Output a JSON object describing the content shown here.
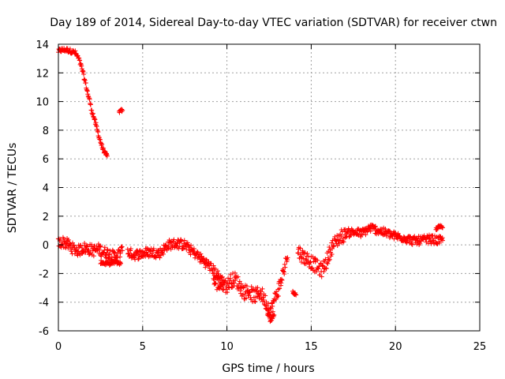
{
  "chart_data": {
    "type": "scatter",
    "title": "Day 189 of 2014, Sidereal Day-to-day VTEC variation (SDTVAR) for receiver ctwn",
    "xlabel": "GPS time / hours",
    "ylabel": "SDTVAR / TECUs",
    "xlim": [
      0,
      25
    ],
    "ylim": [
      -6,
      14
    ],
    "xticks": [
      0,
      5,
      10,
      15,
      20,
      25
    ],
    "yticks": [
      -6,
      -4,
      -2,
      0,
      2,
      4,
      6,
      8,
      10,
      12,
      14
    ],
    "grid": true,
    "marker": "+",
    "series": [
      {
        "name": "SDTVAR",
        "color": "#ff0000",
        "bands": [
          {
            "x": [
              0.0,
              0.2,
              0.5,
              0.8,
              1.0,
              1.2,
              1.4,
              1.6,
              1.8,
              2.0,
              2.2,
              2.4,
              2.6,
              2.8,
              2.9
            ],
            "y": [
              13.5,
              13.6,
              13.6,
              13.5,
              13.4,
              13.0,
              12.3,
              11.3,
              10.3,
              9.3,
              8.5,
              7.6,
              6.8,
              6.3,
              6.2
            ],
            "spread": 0.15
          },
          {
            "x": [
              3.6,
              3.8
            ],
            "y": [
              9.3,
              9.4
            ],
            "spread": 0.1
          },
          {
            "x": [
              0.0,
              0.3,
              0.6,
              0.9,
              1.2,
              1.5,
              1.8,
              2.1,
              2.4,
              2.7,
              3.0,
              3.3,
              3.6,
              3.8
            ],
            "y": [
              0.1,
              0.2,
              0.0,
              -0.3,
              -0.4,
              -0.2,
              -0.3,
              -0.4,
              -0.3,
              -0.5,
              -0.6,
              -0.8,
              -0.6,
              -0.4
            ],
            "spread": 0.4
          },
          {
            "x": [
              2.5,
              2.8,
              3.1,
              3.4,
              3.7
            ],
            "y": [
              -1.2,
              -1.3,
              -1.3,
              -1.2,
              -1.3
            ],
            "spread": 0.12
          },
          {
            "x": [
              4.1,
              4.5,
              5.0,
              5.5,
              6.0,
              6.5,
              7.0,
              7.5,
              8.0,
              8.5,
              9.0,
              9.5,
              9.8
            ],
            "y": [
              -0.5,
              -0.7,
              -0.6,
              -0.5,
              -0.6,
              0.0,
              0.1,
              0.0,
              -0.5,
              -1.0,
              -1.5,
              -2.2,
              -2.6
            ],
            "spread": 0.35
          },
          {
            "x": [
              9.2,
              9.5,
              9.8,
              10.0,
              10.2,
              10.5,
              10.8,
              11.0,
              11.3,
              11.6,
              12.0,
              12.3,
              12.6,
              12.9,
              13.2,
              13.4,
              13.6
            ],
            "y": [
              -2.5,
              -2.8,
              -2.7,
              -2.9,
              -2.5,
              -2.4,
              -2.9,
              -3.3,
              -3.2,
              -3.6,
              -3.3,
              -4.0,
              -4.6,
              -3.6,
              -2.6,
              -1.6,
              -0.9
            ],
            "spread": 0.5
          },
          {
            "x": [
              12.4,
              12.6,
              12.8
            ],
            "y": [
              -4.8,
              -5.2,
              -4.9
            ],
            "spread": 0.2
          },
          {
            "x": [
              13.9,
              14.1
            ],
            "y": [
              -3.2,
              -3.5
            ],
            "spread": 0.15
          },
          {
            "x": [
              14.2,
              14.5,
              14.8,
              15.0,
              15.3,
              15.6,
              15.9,
              16.2,
              16.5,
              16.8,
              17.0
            ],
            "y": [
              -0.4,
              -0.8,
              -1.0,
              -1.2,
              -1.5,
              -1.8,
              -1.2,
              -0.2,
              0.3,
              0.6,
              0.7
            ],
            "spread": 0.5
          },
          {
            "x": [
              17.0,
              17.5,
              18.0,
              18.5,
              19.0,
              19.5,
              20.0,
              20.5,
              21.0,
              21.5,
              22.0,
              22.5,
              22.8
            ],
            "y": [
              0.8,
              0.9,
              0.8,
              1.2,
              1.0,
              0.8,
              0.6,
              0.5,
              0.3,
              0.3,
              0.4,
              0.3,
              0.3
            ],
            "spread": 0.3
          },
          {
            "x": [
              22.4,
              22.6,
              22.8
            ],
            "y": [
              1.1,
              1.3,
              1.2
            ],
            "spread": 0.1
          }
        ]
      }
    ]
  }
}
